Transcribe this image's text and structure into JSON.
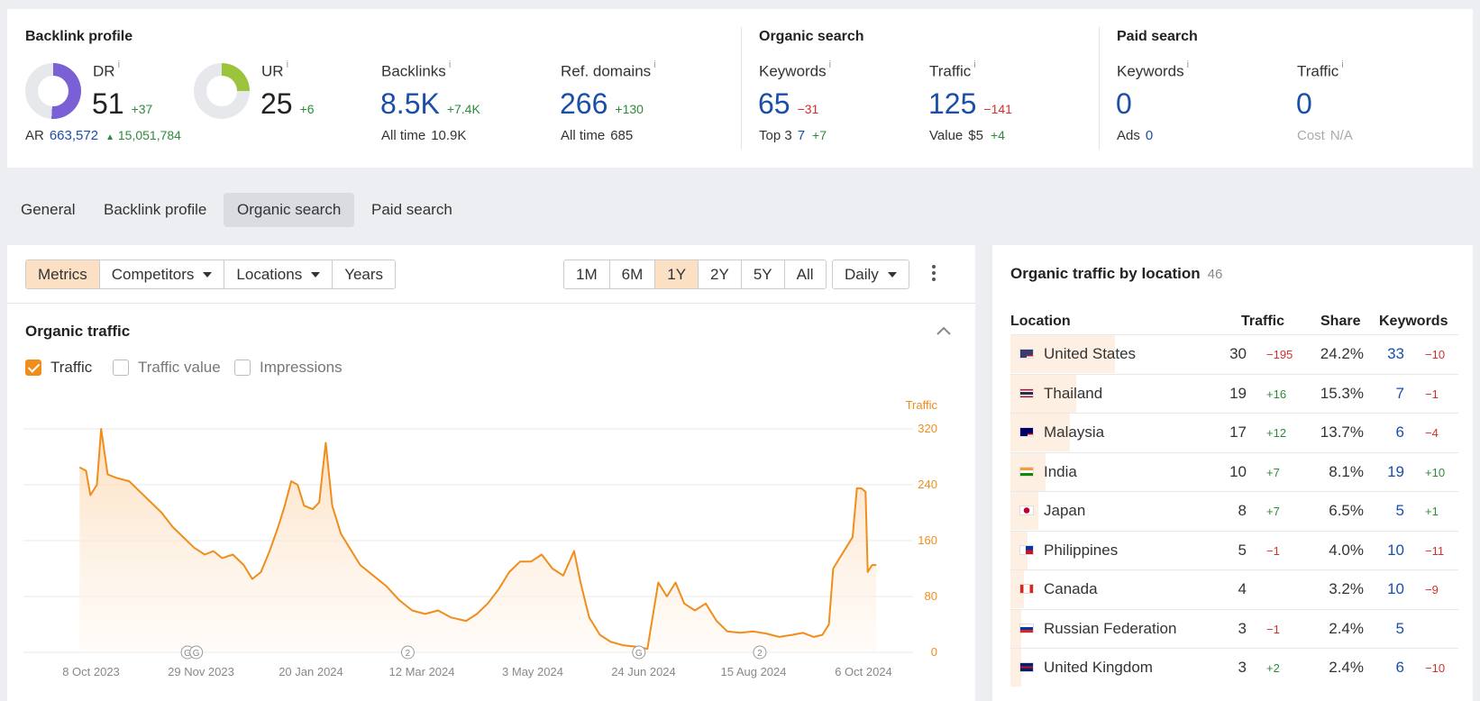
{
  "overview": {
    "backlink": {
      "title": "Backlink profile",
      "dr": {
        "label": "DR",
        "value": "51",
        "delta": "+37",
        "fill_pct": 51,
        "color": "#7b5fd4"
      },
      "ur": {
        "label": "UR",
        "value": "25",
        "delta": "+6",
        "fill_pct": 25,
        "color": "#9bc43c"
      },
      "ar": {
        "label": "AR",
        "value": "663,572",
        "delta": "15,051,784"
      },
      "backlinks": {
        "label": "Backlinks",
        "value": "8.5K",
        "delta": "+7.4K",
        "sub_label": "All time",
        "sub_value": "10.9K"
      },
      "ref_domains": {
        "label": "Ref. domains",
        "value": "266",
        "delta": "+130",
        "sub_label": "All time",
        "sub_value": "685"
      }
    },
    "organic": {
      "title": "Organic search",
      "keywords": {
        "label": "Keywords",
        "value": "65",
        "delta": "−31",
        "sub_label": "Top 3",
        "sub_value": "7",
        "sub_delta": "+7"
      },
      "traffic": {
        "label": "Traffic",
        "value": "125",
        "delta": "−141",
        "sub_label": "Value",
        "sub_value": "$5",
        "sub_delta": "+4"
      }
    },
    "paid": {
      "title": "Paid search",
      "keywords": {
        "label": "Keywords",
        "value": "0",
        "sub_label": "Ads",
        "sub_value": "0"
      },
      "traffic": {
        "label": "Traffic",
        "value": "0",
        "sub_label": "Cost",
        "sub_value": "N/A"
      }
    }
  },
  "tabs": [
    "General",
    "Backlink profile",
    "Organic search",
    "Paid search"
  ],
  "toolbar": {
    "metrics": "Metrics",
    "competitors": "Competitors",
    "locations": "Locations",
    "years": "Years",
    "ranges": [
      "1M",
      "6M",
      "1Y",
      "2Y",
      "5Y",
      "All"
    ],
    "interval": "Daily"
  },
  "organic_traffic": {
    "title": "Organic traffic",
    "checkboxes": [
      {
        "label": "Traffic",
        "checked": true
      },
      {
        "label": "Traffic value",
        "checked": false
      },
      {
        "label": "Impressions",
        "checked": false
      }
    ]
  },
  "chart_data": {
    "type": "area",
    "series_label": "Traffic",
    "color": "#f08d1b",
    "y_ticks": [
      0,
      80,
      160,
      240,
      320
    ],
    "ylim": [
      0,
      320
    ],
    "x_labels": [
      "8 Oct 2023",
      "29 Nov 2023",
      "20 Jan 2024",
      "12 Mar 2024",
      "3 May 2024",
      "24 Jun 2024",
      "15 Aug 2024",
      "6 Oct 2024"
    ],
    "markers": [
      {
        "date": "2023-11-24",
        "text": "G"
      },
      {
        "date": "2023-11-28",
        "text": "G"
      },
      {
        "date": "2024-03-05",
        "text": "2"
      },
      {
        "date": "2024-06-20",
        "text": "G"
      },
      {
        "date": "2024-08-15",
        "text": "2"
      }
    ],
    "points": [
      [
        "2023-10-05",
        265
      ],
      [
        "2023-10-08",
        260
      ],
      [
        "2023-10-10",
        225
      ],
      [
        "2023-10-13",
        240
      ],
      [
        "2023-10-15",
        320
      ],
      [
        "2023-10-18",
        255
      ],
      [
        "2023-10-22",
        250
      ],
      [
        "2023-10-28",
        245
      ],
      [
        "2023-11-02",
        230
      ],
      [
        "2023-11-07",
        215
      ],
      [
        "2023-11-12",
        200
      ],
      [
        "2023-11-17",
        180
      ],
      [
        "2023-11-22",
        165
      ],
      [
        "2023-11-27",
        150
      ],
      [
        "2023-12-02",
        140
      ],
      [
        "2023-12-06",
        145
      ],
      [
        "2023-12-10",
        135
      ],
      [
        "2023-12-15",
        140
      ],
      [
        "2023-12-20",
        125
      ],
      [
        "2023-12-24",
        105
      ],
      [
        "2023-12-28",
        115
      ],
      [
        "2024-01-01",
        145
      ],
      [
        "2024-01-05",
        180
      ],
      [
        "2024-01-08",
        210
      ],
      [
        "2024-01-11",
        245
      ],
      [
        "2024-01-14",
        240
      ],
      [
        "2024-01-17",
        210
      ],
      [
        "2024-01-21",
        205
      ],
      [
        "2024-01-24",
        215
      ],
      [
        "2024-01-27",
        300
      ],
      [
        "2024-01-30",
        210
      ],
      [
        "2024-02-03",
        170
      ],
      [
        "2024-02-07",
        150
      ],
      [
        "2024-02-12",
        125
      ],
      [
        "2024-02-18",
        110
      ],
      [
        "2024-02-24",
        95
      ],
      [
        "2024-03-01",
        75
      ],
      [
        "2024-03-07",
        60
      ],
      [
        "2024-03-13",
        55
      ],
      [
        "2024-03-19",
        60
      ],
      [
        "2024-03-25",
        50
      ],
      [
        "2024-04-01",
        45
      ],
      [
        "2024-04-06",
        55
      ],
      [
        "2024-04-11",
        70
      ],
      [
        "2024-04-16",
        90
      ],
      [
        "2024-04-21",
        115
      ],
      [
        "2024-04-26",
        130
      ],
      [
        "2024-05-01",
        130
      ],
      [
        "2024-05-06",
        140
      ],
      [
        "2024-05-11",
        120
      ],
      [
        "2024-05-16",
        110
      ],
      [
        "2024-05-21",
        145
      ],
      [
        "2024-05-24",
        100
      ],
      [
        "2024-05-28",
        50
      ],
      [
        "2024-06-02",
        25
      ],
      [
        "2024-06-07",
        15
      ],
      [
        "2024-06-13",
        10
      ],
      [
        "2024-06-19",
        8
      ],
      [
        "2024-06-24",
        5
      ],
      [
        "2024-06-29",
        100
      ],
      [
        "2024-07-03",
        80
      ],
      [
        "2024-07-07",
        100
      ],
      [
        "2024-07-11",
        70
      ],
      [
        "2024-07-16",
        60
      ],
      [
        "2024-07-21",
        70
      ],
      [
        "2024-07-26",
        45
      ],
      [
        "2024-07-31",
        30
      ],
      [
        "2024-08-06",
        28
      ],
      [
        "2024-08-12",
        30
      ],
      [
        "2024-08-18",
        27
      ],
      [
        "2024-08-24",
        22
      ],
      [
        "2024-08-30",
        25
      ],
      [
        "2024-09-04",
        28
      ],
      [
        "2024-09-09",
        22
      ],
      [
        "2024-09-13",
        25
      ],
      [
        "2024-09-16",
        40
      ],
      [
        "2024-09-18",
        120
      ],
      [
        "2024-09-21",
        135
      ],
      [
        "2024-09-24",
        150
      ],
      [
        "2024-09-27",
        165
      ],
      [
        "2024-09-29",
        235
      ],
      [
        "2024-10-01",
        235
      ],
      [
        "2024-10-03",
        230
      ],
      [
        "2024-10-04",
        115
      ],
      [
        "2024-10-06",
        125
      ],
      [
        "2024-10-08",
        125
      ]
    ]
  },
  "locations": {
    "title": "Organic traffic by location",
    "count": "46",
    "headers": {
      "location": "Location",
      "traffic": "Traffic",
      "share": "Share",
      "keywords": "Keywords"
    },
    "rows": [
      {
        "flag": "us-flag-icon",
        "name": "United States",
        "traffic": "30",
        "traffic_delta": "−195",
        "share": "24.2%",
        "share_value": 24.2,
        "keywords": "33",
        "keywords_delta": "−10"
      },
      {
        "flag": "th-flag-icon",
        "name": "Thailand",
        "traffic": "19",
        "traffic_delta": "+16",
        "share": "15.3%",
        "share_value": 15.3,
        "keywords": "7",
        "keywords_delta": "−1"
      },
      {
        "flag": "my-flag-icon",
        "name": "Malaysia",
        "traffic": "17",
        "traffic_delta": "+12",
        "share": "13.7%",
        "share_value": 13.7,
        "keywords": "6",
        "keywords_delta": "−4"
      },
      {
        "flag": "in-flag-icon",
        "name": "India",
        "traffic": "10",
        "traffic_delta": "+7",
        "share": "8.1%",
        "share_value": 8.1,
        "keywords": "19",
        "keywords_delta": "+10"
      },
      {
        "flag": "jp-flag-icon",
        "name": "Japan",
        "traffic": "8",
        "traffic_delta": "+7",
        "share": "6.5%",
        "share_value": 6.5,
        "keywords": "5",
        "keywords_delta": "+1"
      },
      {
        "flag": "ph-flag-icon",
        "name": "Philippines",
        "traffic": "5",
        "traffic_delta": "−1",
        "share": "4.0%",
        "share_value": 4.0,
        "keywords": "10",
        "keywords_delta": "−11"
      },
      {
        "flag": "ca-flag-icon",
        "name": "Canada",
        "traffic": "4",
        "traffic_delta": "",
        "share": "3.2%",
        "share_value": 3.2,
        "keywords": "10",
        "keywords_delta": "−9"
      },
      {
        "flag": "ru-flag-icon",
        "name": "Russian Federation",
        "traffic": "3",
        "traffic_delta": "−1",
        "share": "2.4%",
        "share_value": 2.4,
        "keywords": "5",
        "keywords_delta": ""
      },
      {
        "flag": "gb-flag-icon",
        "name": "United Kingdom",
        "traffic": "3",
        "traffic_delta": "+2",
        "share": "2.4%",
        "share_value": 2.4,
        "keywords": "6",
        "keywords_delta": "−10"
      }
    ]
  }
}
